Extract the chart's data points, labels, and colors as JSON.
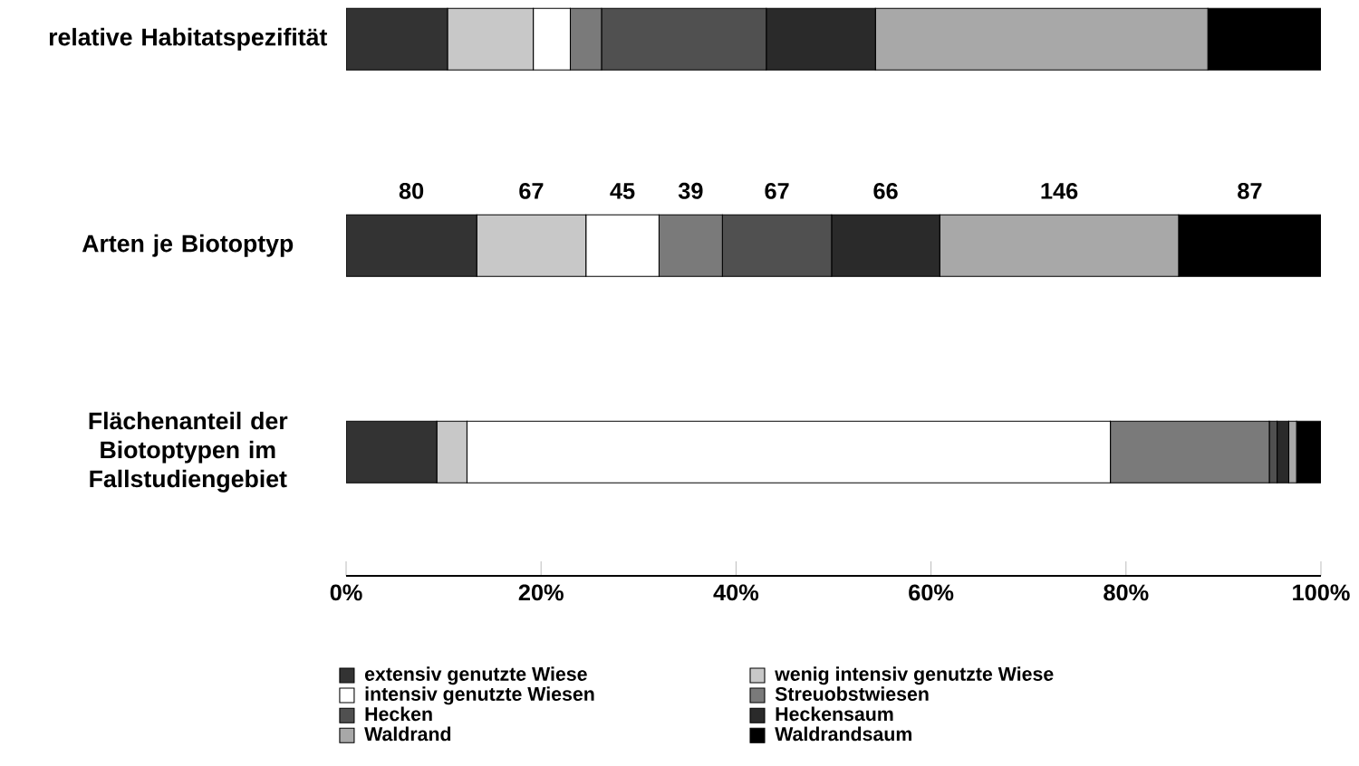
{
  "chart_data": {
    "type": "bar",
    "orientation": "horizontal",
    "stacked": true,
    "categories": [
      "relative Habitatspezifität",
      "Arten je Biotoptyp",
      "Flächenanteil der Biotoptypen im Fallstudiengebiet"
    ],
    "series": [
      {
        "name": "extensiv genutzte Wiese",
        "color": "#333333",
        "values": [
          10.4,
          13.4,
          9.3
        ]
      },
      {
        "name": "wenig intensiv genutzte Wiese",
        "color": "#c8c8c8",
        "values": [
          8.8,
          11.2,
          3.1
        ]
      },
      {
        "name": "intensiv genutzte Wiesen",
        "color": "#ffffff",
        "values": [
          3.8,
          7.5,
          66.0
        ]
      },
      {
        "name": "Streuobstwiesen",
        "color": "#7a7a7a",
        "values": [
          3.2,
          6.5,
          16.3
        ]
      },
      {
        "name": "Hecken",
        "color": "#505050",
        "values": [
          16.9,
          11.2,
          0.8
        ]
      },
      {
        "name": "Heckensaum",
        "color": "#2a2a2a",
        "values": [
          11.2,
          11.1,
          1.2
        ]
      },
      {
        "name": "Waldrand",
        "color": "#a8a8a8",
        "values": [
          34.1,
          24.5,
          0.8
        ]
      },
      {
        "name": "Waldrandsaum",
        "color": "#000000",
        "values": [
          11.6,
          14.6,
          2.5
        ]
      }
    ],
    "annotations": [
      "80",
      "67",
      "45",
      "39",
      "67",
      "66",
      "146",
      "87"
    ],
    "xlim": [
      0,
      100
    ],
    "xticks": [
      {
        "value": 0,
        "label": "0%"
      },
      {
        "value": 20,
        "label": "20%"
      },
      {
        "value": 40,
        "label": "40%"
      },
      {
        "value": 60,
        "label": "60%"
      },
      {
        "value": 80,
        "label": "80%"
      },
      {
        "value": 100,
        "label": "100%"
      }
    ],
    "legend": "bottom"
  }
}
